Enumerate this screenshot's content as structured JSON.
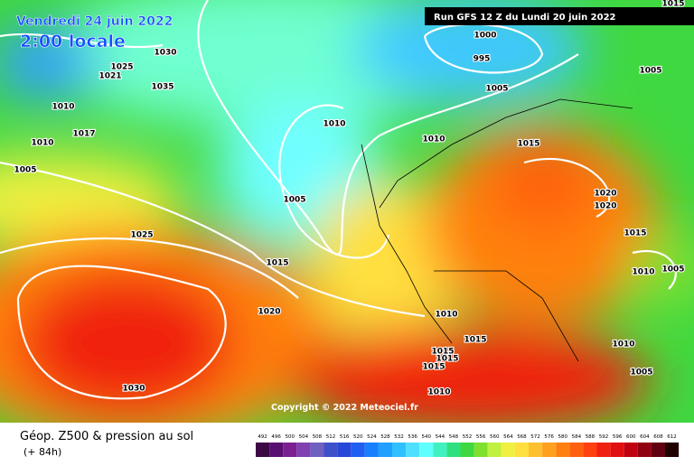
{
  "header": {
    "date": "Vendredi 24 juin 2022",
    "time": "2:00 locale",
    "run": "Run GFS 12 Z du Lundi 20 juin 2022"
  },
  "copyright": "Copyright © 2022 Meteociel.fr",
  "footer": {
    "title": "Géop. Z500 & pression au sol",
    "lead": "(+ 84h)"
  },
  "isobar_labels": [
    1030,
    1025,
    1021,
    1035,
    1010,
    1017,
    1010,
    1005,
    1010,
    1000,
    995,
    1005,
    1005,
    1010,
    1015,
    1005,
    1025,
    1015,
    1020,
    1020,
    1015,
    1010,
    1005,
    1020,
    1010,
    1015,
    1015,
    1015,
    1015,
    1010,
    1005,
    1030,
    1010,
    1015
  ],
  "colorbar": {
    "labels": [
      492,
      496,
      500,
      504,
      508,
      512,
      516,
      520,
      524,
      528,
      532,
      536,
      540,
      544,
      548,
      552,
      556,
      560,
      564,
      568,
      572,
      576,
      580,
      584,
      588,
      592,
      596,
      600,
      604,
      608,
      612
    ],
    "colors": [
      "#3b0a45",
      "#5a1070",
      "#7a2090",
      "#8040b0",
      "#7060c0",
      "#4050c8",
      "#2848d8",
      "#2060f0",
      "#1880ff",
      "#20a0ff",
      "#30c0ff",
      "#50e0ff",
      "#60ffff",
      "#40f0c0",
      "#30e080",
      "#40d840",
      "#80e030",
      "#c0f040",
      "#f0f040",
      "#ffe040",
      "#ffc030",
      "#ffa020",
      "#ff8010",
      "#ff6010",
      "#ff4010",
      "#f02010",
      "#e01010",
      "#c00010",
      "#900010",
      "#600010",
      "#200000"
    ]
  }
}
